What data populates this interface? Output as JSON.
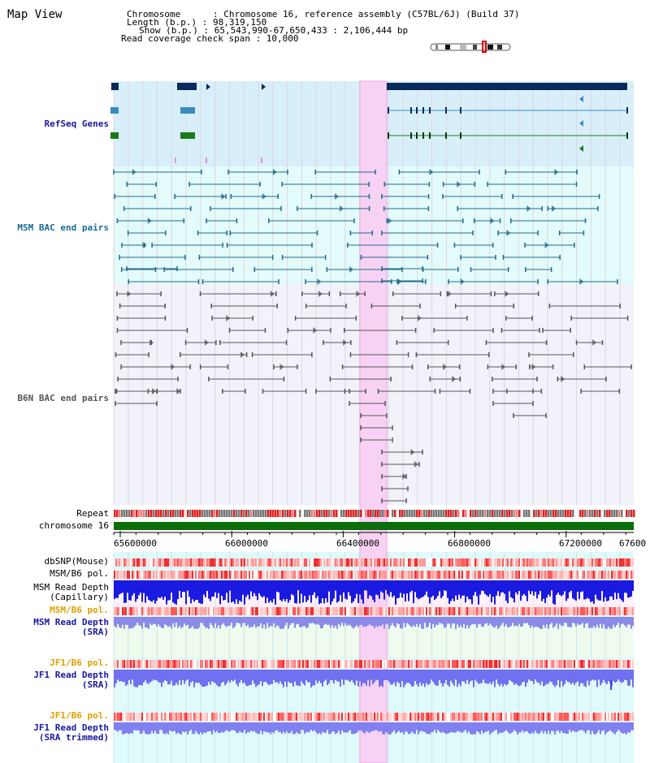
{
  "header": {
    "title": "Map View",
    "chromosome_line": "Chromosome      : Chromosome 16, reference assembly (C57BL/6J) (Build 37)",
    "length_line": "Length (b.p.) : 98,319,150",
    "show_line": "Show (b.p.) : 65,543,990-67,650,433 : 2,106,444 bp",
    "read_span_line": "Read coverage check span : 10,000"
  },
  "tracks": {
    "refseq": "RefSeq Genes",
    "msm_bac": "MSM BAC end pairs",
    "b6n_bac": "B6N BAC end pairs",
    "repeat": "Repeat",
    "chromosome": "chromosome 16",
    "dbsnp": "dbSNP(Mouse)",
    "msm_b6_pol": "MSM/B6 pol.",
    "msm_read_depth_cap": "MSM Read Depth",
    "msm_read_depth_cap_sub": "(Capillary)",
    "msm_b6_pol_sra": "MSM/B6 pol.",
    "msm_read_depth_sra": "MSM Read Depth",
    "msm_read_depth_sra_sub": "(SRA)",
    "jf1_b6_pol": "JF1/B6 pol.",
    "jf1_read_depth": "JF1 Read Depth",
    "jf1_read_depth_sub": "(SRA)",
    "jf1_b6_pol_trim": "JF1/B6 pol.",
    "jf1_read_depth_trim": "JF1 Read Depth",
    "jf1_read_depth_trim_sub": "(SRA trimmed)"
  },
  "axis": {
    "ticks": [
      "65600000",
      "66000000",
      "66400000",
      "66800000",
      "67200000",
      "67600"
    ]
  },
  "colors": {
    "label_blue": "#1a1aa0",
    "label_orange": "#e0a000",
    "refseq_bg": "#d8effa",
    "msm_bg": "#e4fbfb",
    "b6n_bg": "#f2f2fb",
    "highlight": "#f8d2f4",
    "gene_dark": "#0a2a5c",
    "gene_mid": "#3a8cc0",
    "gene_green": "#1a7a1a",
    "msm_pair": "#1f6a8a",
    "b6n_pair": "#555555",
    "chrom_bar": "#0a6e0a"
  }
}
